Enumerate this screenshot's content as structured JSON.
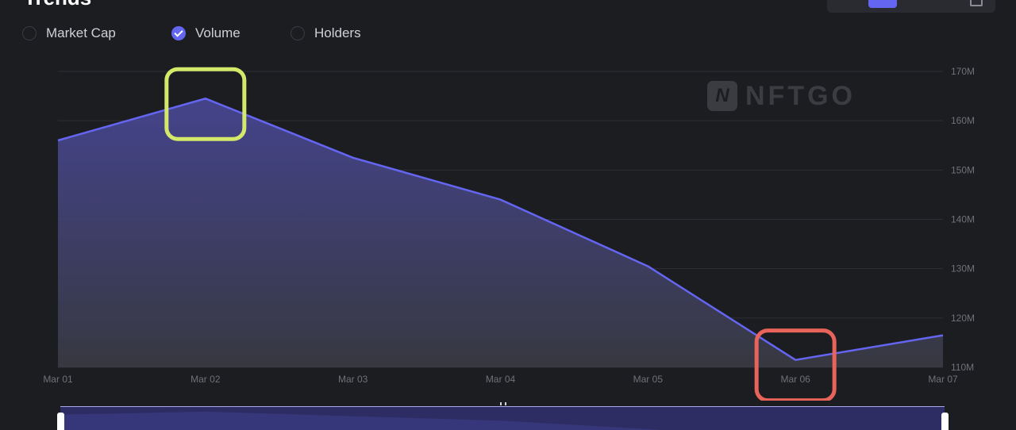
{
  "header": {
    "title": "Trends"
  },
  "legend": {
    "items": [
      {
        "label": "Market Cap",
        "checked": false
      },
      {
        "label": "Volume",
        "checked": true
      },
      {
        "label": "Holders",
        "checked": false
      }
    ]
  },
  "watermark": {
    "badge": "N",
    "text": "NFTGO"
  },
  "colors": {
    "background": "#1c1d21",
    "line": "#6466f1",
    "grid": "#2e2f36",
    "highlight_peak": "#d4e86a",
    "highlight_low": "#e8645a"
  },
  "chart_data": {
    "type": "area",
    "title": "",
    "xlabel": "",
    "ylabel": "",
    "x": [
      "Mar 01",
      "Mar 02",
      "Mar 03",
      "Mar 04",
      "Mar 05",
      "Mar 06",
      "Mar 07"
    ],
    "series": [
      {
        "name": "Volume",
        "values": [
          156,
          164.5,
          152.5,
          144,
          130.5,
          111.5,
          116.5
        ]
      }
    ],
    "y_ticks": [
      "110M",
      "120M",
      "130M",
      "140M",
      "150M",
      "160M",
      "170M"
    ],
    "ylim": [
      110,
      170
    ],
    "y_unit": "M",
    "y_axis_position": "right",
    "grid": true,
    "annotations": [
      {
        "type": "highlight-box",
        "x": "Mar 02",
        "color": "#d4e86a",
        "meaning": "peak"
      },
      {
        "type": "highlight-box",
        "x": "Mar 06",
        "color": "#e8645a",
        "meaning": "low"
      }
    ]
  }
}
